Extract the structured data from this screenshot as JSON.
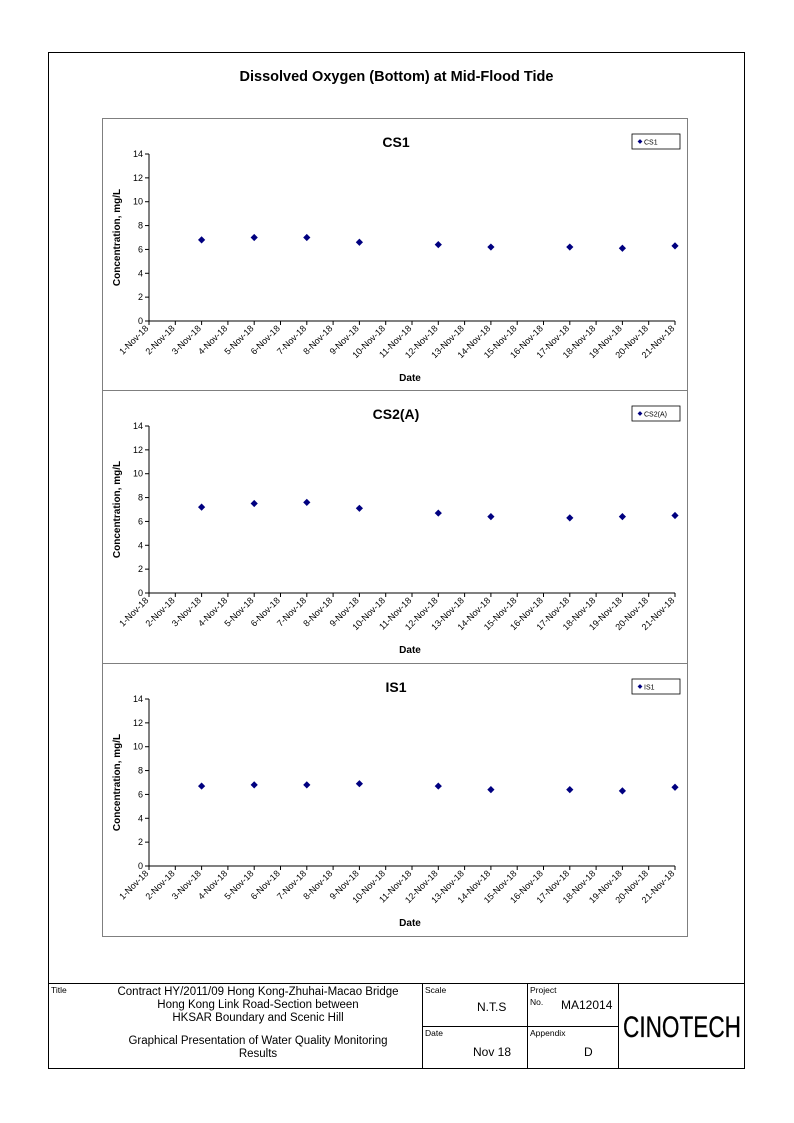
{
  "page_title": "Dissolved Oxygen (Bottom) at Mid-Flood Tide",
  "chart_data": [
    {
      "type": "scatter",
      "title": "CS1",
      "xlabel": "Date",
      "ylabel": "Concentration, mg/L",
      "ylim": [
        0,
        14
      ],
      "yticks": [
        0,
        2,
        4,
        6,
        8,
        10,
        12,
        14
      ],
      "categories": [
        "1-Nov-18",
        "2-Nov-18",
        "3-Nov-18",
        "4-Nov-18",
        "5-Nov-18",
        "6-Nov-18",
        "7-Nov-18",
        "8-Nov-18",
        "9-Nov-18",
        "10-Nov-18",
        "11-Nov-18",
        "12-Nov-18",
        "13-Nov-18",
        "14-Nov-18",
        "15-Nov-18",
        "16-Nov-18",
        "17-Nov-18",
        "18-Nov-18",
        "19-Nov-18",
        "20-Nov-18",
        "21-Nov-18"
      ],
      "series": [
        {
          "name": "CS1",
          "marker": "diamond",
          "color": "#000080",
          "points": [
            [
              "3-Nov-18",
              6.8
            ],
            [
              "5-Nov-18",
              7.0
            ],
            [
              "7-Nov-18",
              7.0
            ],
            [
              "9-Nov-18",
              6.6
            ],
            [
              "12-Nov-18",
              6.4
            ],
            [
              "14-Nov-18",
              6.2
            ],
            [
              "17-Nov-18",
              6.2
            ],
            [
              "19-Nov-18",
              6.1
            ],
            [
              "21-Nov-18",
              6.3
            ]
          ]
        }
      ],
      "grid": false,
      "legend": "top-right"
    },
    {
      "type": "scatter",
      "title": "CS2(A)",
      "xlabel": "Date",
      "ylabel": "Concentration, mg/L",
      "ylim": [
        0,
        14
      ],
      "yticks": [
        0,
        2,
        4,
        6,
        8,
        10,
        12,
        14
      ],
      "categories": [
        "1-Nov-18",
        "2-Nov-18",
        "3-Nov-18",
        "4-Nov-18",
        "5-Nov-18",
        "6-Nov-18",
        "7-Nov-18",
        "8-Nov-18",
        "9-Nov-18",
        "10-Nov-18",
        "11-Nov-18",
        "12-Nov-18",
        "13-Nov-18",
        "14-Nov-18",
        "15-Nov-18",
        "16-Nov-18",
        "17-Nov-18",
        "18-Nov-18",
        "19-Nov-18",
        "20-Nov-18",
        "21-Nov-18"
      ],
      "series": [
        {
          "name": "CS2(A)",
          "marker": "diamond",
          "color": "#000080",
          "points": [
            [
              "3-Nov-18",
              7.2
            ],
            [
              "5-Nov-18",
              7.5
            ],
            [
              "7-Nov-18",
              7.6
            ],
            [
              "9-Nov-18",
              7.1
            ],
            [
              "12-Nov-18",
              6.7
            ],
            [
              "14-Nov-18",
              6.4
            ],
            [
              "17-Nov-18",
              6.3
            ],
            [
              "19-Nov-18",
              6.4
            ],
            [
              "21-Nov-18",
              6.5
            ]
          ]
        }
      ],
      "grid": false,
      "legend": "top-right"
    },
    {
      "type": "scatter",
      "title": "IS1",
      "xlabel": "Date",
      "ylabel": "Concentration, mg/L",
      "ylim": [
        0,
        14
      ],
      "yticks": [
        0,
        2,
        4,
        6,
        8,
        10,
        12,
        14
      ],
      "categories": [
        "1-Nov-18",
        "2-Nov-18",
        "3-Nov-18",
        "4-Nov-18",
        "5-Nov-18",
        "6-Nov-18",
        "7-Nov-18",
        "8-Nov-18",
        "9-Nov-18",
        "10-Nov-18",
        "11-Nov-18",
        "12-Nov-18",
        "13-Nov-18",
        "14-Nov-18",
        "15-Nov-18",
        "16-Nov-18",
        "17-Nov-18",
        "18-Nov-18",
        "19-Nov-18",
        "20-Nov-18",
        "21-Nov-18"
      ],
      "series": [
        {
          "name": "IS1",
          "marker": "diamond",
          "color": "#000080",
          "points": [
            [
              "3-Nov-18",
              6.7
            ],
            [
              "5-Nov-18",
              6.8
            ],
            [
              "7-Nov-18",
              6.8
            ],
            [
              "9-Nov-18",
              6.9
            ],
            [
              "12-Nov-18",
              6.7
            ],
            [
              "14-Nov-18",
              6.4
            ],
            [
              "17-Nov-18",
              6.4
            ],
            [
              "19-Nov-18",
              6.3
            ],
            [
              "21-Nov-18",
              6.6
            ]
          ]
        }
      ],
      "grid": false,
      "legend": "top-right"
    }
  ],
  "title_block": {
    "title_label": "Title",
    "title_lines": [
      "Contract HY/2011/09 Hong Kong-Zhuhai-Macao Bridge",
      "Hong Kong Link Road-Section between",
      "HKSAR Boundary and Scenic Hill"
    ],
    "subtitle_lines": [
      "Graphical Presentation of Water Quality Monitoring",
      "Results"
    ],
    "scale_label": "Scale",
    "scale_value": "N.T.S",
    "project_label": "Project",
    "no_label": "No.",
    "project_no": "MA12014",
    "date_label": "Date",
    "date_value": "Nov 18",
    "appendix_label": "Appendix",
    "appendix_value": "D",
    "company_logo": "CINOTECH"
  }
}
